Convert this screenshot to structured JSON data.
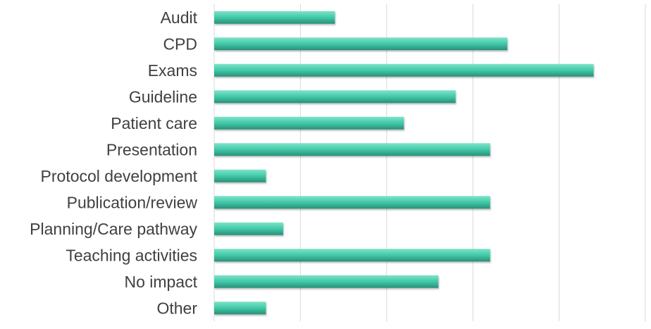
{
  "chart_data": {
    "type": "bar",
    "orientation": "horizontal",
    "categories": [
      "Audit",
      "CPD",
      "Exams",
      "Guideline",
      "Patient care",
      "Presentation",
      "Protocol development",
      "Publication/review",
      "Planning/Care pathway",
      "Teaching activities",
      "No impact",
      "Other"
    ],
    "values": [
      7,
      17,
      22,
      14,
      11,
      16,
      3,
      16,
      4,
      16,
      13,
      3
    ],
    "xlim": [
      0,
      25
    ],
    "grid": true,
    "legend": "none",
    "colors": {
      "bar": "#40c9a8",
      "bar_highlight": "#7de3c8",
      "bar_shadow": "#2a8f77",
      "gridline": "#d9d9d9",
      "label": "#404040"
    }
  }
}
